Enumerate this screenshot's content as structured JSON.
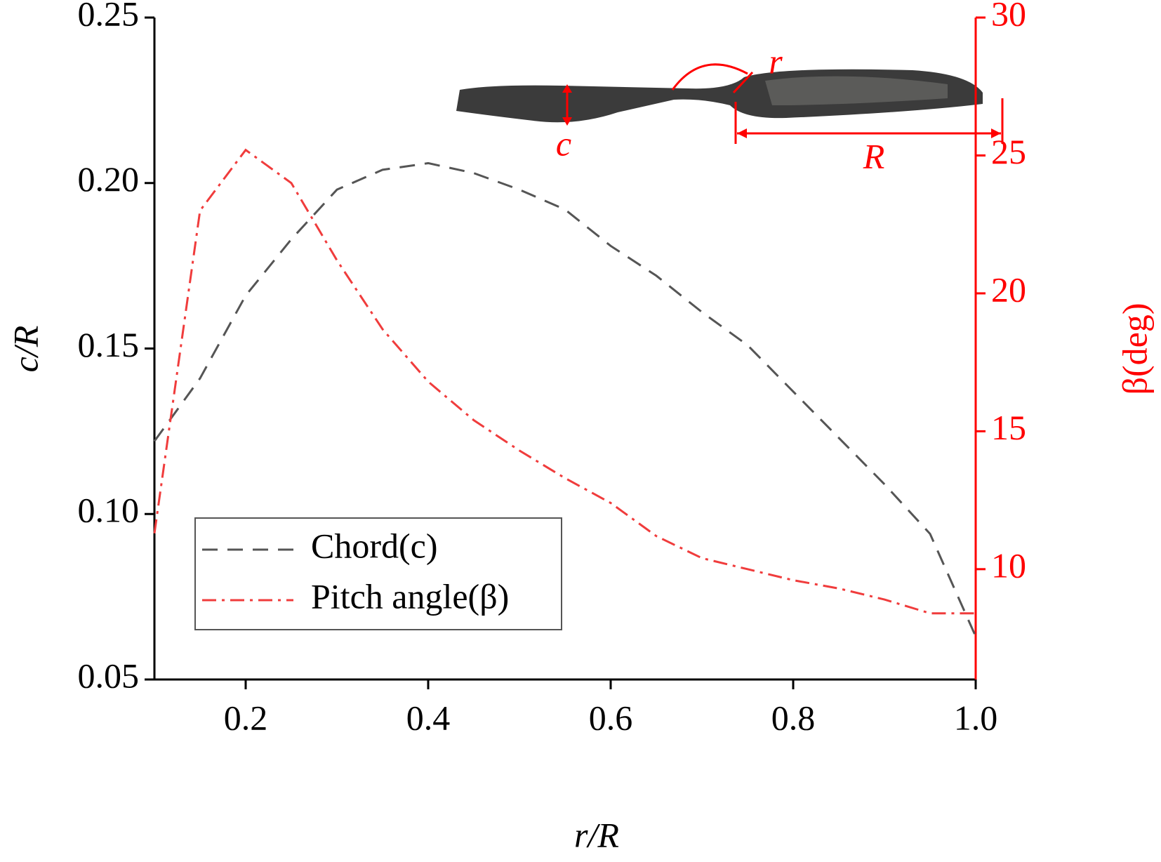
{
  "chart_data": {
    "type": "line",
    "x": [
      0.1,
      0.15,
      0.2,
      0.25,
      0.3,
      0.35,
      0.4,
      0.45,
      0.5,
      0.55,
      0.6,
      0.65,
      0.7,
      0.75,
      0.8,
      0.85,
      0.9,
      0.95,
      1.0
    ],
    "series": [
      {
        "name": "Chord(c)",
        "color": "#555555",
        "dash": "22,14",
        "values": [
          0.122,
          0.141,
          0.166,
          0.183,
          0.198,
          0.204,
          0.206,
          0.203,
          0.198,
          0.192,
          0.181,
          0.172,
          0.161,
          0.151,
          0.137,
          0.123,
          0.109,
          0.094,
          0.063
        ]
      },
      {
        "name": "Pitch angle(β)",
        "color": "#f03c3c",
        "dash": "20,8,4,8",
        "axis": "y2",
        "values": [
          11.3,
          23.0,
          25.2,
          24.0,
          21.2,
          18.7,
          16.8,
          15.4,
          14.3,
          13.3,
          12.4,
          11.2,
          10.4,
          10.0,
          9.6,
          9.3,
          8.9,
          8.4,
          8.4
        ]
      }
    ],
    "xlabel": "r/R",
    "ylabel": "c/R",
    "y2label": "β(deg)",
    "xlim": [
      0.1,
      1.0
    ],
    "xticks": [
      0.2,
      0.4,
      0.6,
      0.8,
      {
        "value": 1.0,
        "label": "1.0"
      }
    ],
    "ylim": [
      0.05,
      0.25
    ],
    "yticks": [
      {
        "value": 0.05,
        "label": "0.05"
      },
      {
        "value": 0.1,
        "label": "0.10"
      },
      {
        "value": 0.15,
        "label": "0.15"
      },
      {
        "value": 0.2,
        "label": "0.20"
      },
      {
        "value": 0.25,
        "label": "0.25"
      }
    ],
    "y2lim": [
      6,
      30
    ],
    "y2ticks": [
      10,
      15,
      20,
      25,
      30
    ],
    "y2color": "#ff0000",
    "legend": "bottom-left",
    "annotations": [
      "c",
      "r",
      "R"
    ]
  }
}
